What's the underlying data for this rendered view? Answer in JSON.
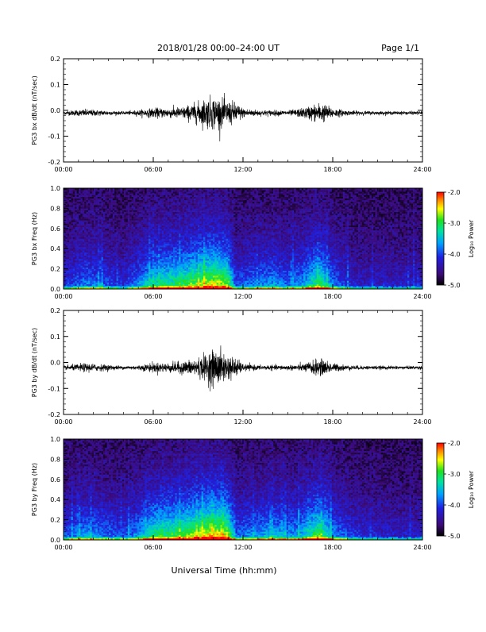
{
  "header": {
    "title": "2018/01/28  00:00–24:00 UT",
    "page": "Page 1/1"
  },
  "footer": {
    "xlabel": "Universal Time (hh:mm)"
  },
  "chart_data": [
    {
      "type": "line",
      "ylabel": "PG3 bx dB/dt (nT/sec)",
      "xlim": [
        0,
        24
      ],
      "ylim": [
        -0.2,
        0.2
      ],
      "x_ticks": [
        "00:00",
        "06:00",
        "12:00",
        "18:00",
        "24:00"
      ],
      "y_ticks": [
        "0.2",
        "0.1",
        "0.0",
        "-0.1",
        "-0.2"
      ],
      "series": [
        {
          "x": [
            0,
            1.5,
            4,
            5,
            6,
            7,
            8,
            9,
            9.5,
            10,
            10.5,
            11,
            11.5,
            12,
            13,
            14,
            15,
            16,
            17,
            17.5,
            18,
            19,
            20,
            22,
            24
          ],
          "amplitude": [
            0.008,
            0.015,
            0.006,
            0.012,
            0.02,
            0.02,
            0.025,
            0.045,
            0.06,
            0.07,
            0.06,
            0.05,
            0.045,
            0.02,
            0.012,
            0.012,
            0.01,
            0.02,
            0.04,
            0.035,
            0.02,
            0.01,
            0.008,
            0.007,
            0.007
          ],
          "offset": -0.01
        }
      ]
    },
    {
      "type": "heatmap",
      "ylabel": "PG3 bx Freq (Hz)",
      "xlim": [
        0,
        24
      ],
      "ylim": [
        0.0,
        1.0
      ],
      "x_ticks": [
        "00:00",
        "06:00",
        "12:00",
        "18:00",
        "24:00"
      ],
      "y_ticks": [
        "1.0",
        "0.8",
        "0.6",
        "0.4",
        "0.2",
        "0.0"
      ],
      "colorbar": {
        "label": "Log₁₀ Power",
        "range": [
          -5.0,
          -2.0
        ],
        "ticks": [
          "-2.0",
          "-3.0",
          "-4.0",
          "-5.0"
        ]
      },
      "activity_profile": {
        "x": [
          0,
          1.5,
          4,
          5,
          6,
          7,
          8,
          9,
          9.5,
          10,
          10.5,
          11,
          11.5,
          12,
          13,
          14,
          15,
          16,
          17,
          17.5,
          18,
          19,
          20,
          22,
          24
        ],
        "level": [
          0.25,
          0.4,
          0.25,
          0.4,
          0.6,
          0.65,
          0.7,
          0.8,
          0.85,
          0.9,
          0.85,
          0.8,
          0.3,
          0.35,
          0.4,
          0.45,
          0.35,
          0.45,
          0.7,
          0.6,
          0.4,
          0.25,
          0.2,
          0.2,
          0.2
        ]
      }
    },
    {
      "type": "line",
      "ylabel": "PG3 by dB/dt (nT/sec)",
      "xlim": [
        0,
        24
      ],
      "ylim": [
        -0.2,
        0.2
      ],
      "x_ticks": [
        "00:00",
        "06:00",
        "12:00",
        "18:00",
        "24:00"
      ],
      "y_ticks": [
        "0.2",
        "0.1",
        "0.0",
        "-0.1",
        "-0.2"
      ],
      "series": [
        {
          "x": [
            0,
            1.5,
            4,
            5,
            6,
            7,
            8,
            9,
            9.5,
            10,
            10.5,
            11,
            11.5,
            12,
            13,
            14,
            15,
            16,
            17,
            17.5,
            18,
            19,
            20,
            22,
            24
          ],
          "amplitude": [
            0.008,
            0.018,
            0.007,
            0.01,
            0.02,
            0.02,
            0.025,
            0.04,
            0.055,
            0.075,
            0.07,
            0.05,
            0.04,
            0.015,
            0.01,
            0.01,
            0.01,
            0.015,
            0.035,
            0.03,
            0.018,
            0.01,
            0.008,
            0.007,
            0.007
          ],
          "offset": -0.02
        }
      ]
    },
    {
      "type": "heatmap",
      "ylabel": "PG3 by Freq (Hz)",
      "xlim": [
        0,
        24
      ],
      "ylim": [
        0.0,
        1.0
      ],
      "x_ticks": [
        "00:00",
        "06:00",
        "12:00",
        "18:00",
        "24:00"
      ],
      "y_ticks": [
        "1.0",
        "0.8",
        "0.6",
        "0.4",
        "0.2",
        "0.0"
      ],
      "colorbar": {
        "label": "Log₁₀ Power",
        "range": [
          -5.0,
          -2.0
        ],
        "ticks": [
          "-2.0",
          "-3.0",
          "-4.0",
          "-5.0"
        ]
      },
      "activity_profile": {
        "x": [
          0,
          1.5,
          4,
          5,
          6,
          7,
          8,
          9,
          9.5,
          10,
          10.5,
          11,
          11.5,
          12,
          13,
          14,
          15,
          16,
          17,
          17.5,
          18,
          19,
          20,
          22,
          24
        ],
        "level": [
          0.3,
          0.45,
          0.3,
          0.45,
          0.65,
          0.7,
          0.75,
          0.85,
          0.9,
          0.95,
          0.9,
          0.85,
          0.35,
          0.4,
          0.45,
          0.5,
          0.4,
          0.5,
          0.75,
          0.65,
          0.45,
          0.3,
          0.25,
          0.2,
          0.2
        ]
      }
    }
  ]
}
